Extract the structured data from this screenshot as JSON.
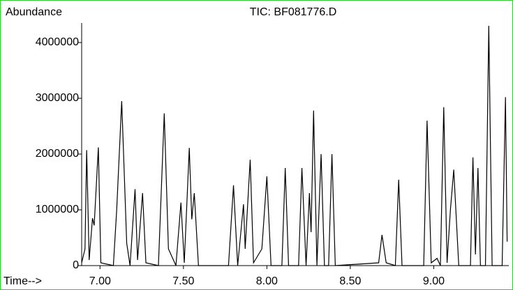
{
  "chart_data": {
    "type": "line",
    "title": "TIC: BF081776.D",
    "ylabel": "Abundance",
    "xlabel": "Time-->",
    "color": "#000000",
    "x": [
      6.89,
      6.91,
      6.92,
      6.935,
      6.955,
      6.965,
      6.99,
      7.005,
      7.08,
      7.1,
      7.13,
      7.16,
      7.18,
      7.21,
      7.225,
      7.255,
      7.275,
      7.35,
      7.385,
      7.41,
      7.455,
      7.485,
      7.505,
      7.535,
      7.55,
      7.565,
      7.59,
      7.77,
      7.8,
      7.825,
      7.86,
      7.87,
      7.9,
      7.92,
      7.97,
      8.0,
      8.025,
      8.09,
      8.11,
      8.13,
      8.19,
      8.21,
      8.235,
      8.255,
      8.265,
      8.28,
      8.3,
      8.325,
      8.345,
      8.37,
      8.39,
      8.41,
      8.67,
      8.69,
      8.715,
      8.77,
      8.79,
      8.81,
      8.94,
      8.96,
      8.985,
      9.02,
      9.04,
      9.06,
      9.08,
      9.1,
      9.12,
      9.15,
      9.22,
      9.235,
      9.25,
      9.265,
      9.28,
      9.31,
      9.33,
      9.35,
      9.41,
      9.43,
      9.44
    ],
    "values": [
      50000,
      300000,
      2070000,
      100000,
      850000,
      720000,
      2120000,
      50000,
      0,
      1000000,
      2950000,
      400000,
      0,
      1370000,
      100000,
      1300000,
      50000,
      0,
      2730000,
      300000,
      0,
      1130000,
      50000,
      2110000,
      830000,
      1300000,
      0,
      0,
      1440000,
      0,
      1100000,
      300000,
      1900000,
      50000,
      300000,
      1600000,
      0,
      0,
      1750000,
      0,
      0,
      1750000,
      0,
      1300000,
      600000,
      2780000,
      0,
      2000000,
      0,
      0,
      2000000,
      0,
      50000,
      550000,
      50000,
      0,
      1540000,
      0,
      0,
      2600000,
      50000,
      130000,
      0,
      2840000,
      50000,
      1000000,
      1720000,
      0,
      0,
      1940000,
      200000,
      1750000,
      0,
      0,
      4300000,
      0,
      0,
      3020000,
      430000
    ],
    "xlim": [
      6.89,
      9.45
    ],
    "ylim": [
      0,
      4350000
    ],
    "xticks": [
      {
        "value": 7.0,
        "label": "7.00"
      },
      {
        "value": 7.5,
        "label": "7.50"
      },
      {
        "value": 8.0,
        "label": "8.00"
      },
      {
        "value": 8.5,
        "label": "8.50"
      },
      {
        "value": 9.0,
        "label": "9.00"
      }
    ],
    "yticks": [
      0,
      1000000,
      2000000,
      3000000,
      4000000
    ]
  }
}
